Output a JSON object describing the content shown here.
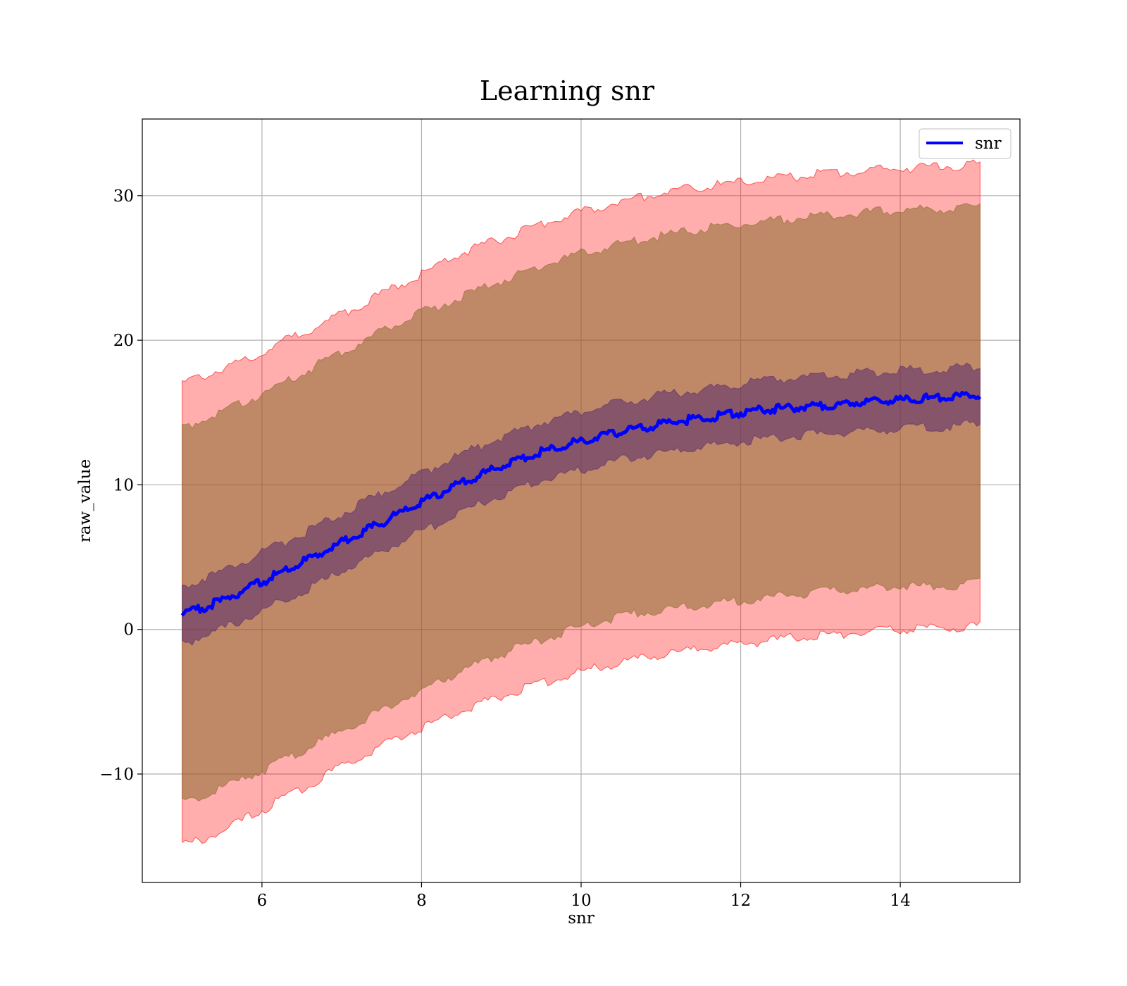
{
  "chart_data": {
    "type": "line",
    "title": "Learning snr",
    "xlabel": "snr",
    "ylabel": "raw_value",
    "xlim": [
      4.5,
      15.5
    ],
    "ylim": [
      -17.5,
      35.3
    ],
    "xticks": [
      6,
      8,
      10,
      12,
      14
    ],
    "yticks": [
      -10,
      0,
      10,
      20,
      30
    ],
    "xtick_labels": [
      "6",
      "8",
      "10",
      "12",
      "14"
    ],
    "ytick_labels": [
      "−10",
      "0",
      "10",
      "20",
      "30"
    ],
    "grid": true,
    "legend_position": "top-right",
    "series": [
      {
        "name": "snr",
        "color": "#0000ff",
        "x": [
          5,
          5.5,
          6,
          6.5,
          7,
          7.5,
          8,
          8.5,
          9,
          9.5,
          10,
          10.5,
          11,
          11.5,
          12,
          12.5,
          13,
          13.5,
          14,
          14.5,
          15
        ],
        "y": [
          1.0,
          2.0,
          3.3,
          4.6,
          6.0,
          7.4,
          8.8,
          10.1,
          11.3,
          12.3,
          13.0,
          13.7,
          14.2,
          14.6,
          15.0,
          15.3,
          15.5,
          15.7,
          15.9,
          16.0,
          16.2
        ]
      }
    ],
    "bands": [
      {
        "color": "#ff0000",
        "opacity": 0.32,
        "x": [
          5,
          5.5,
          6,
          6.5,
          7,
          7.5,
          8,
          8.5,
          9,
          9.5,
          10,
          10.5,
          11,
          11.5,
          12,
          12.5,
          13,
          13.5,
          14,
          14.5,
          15
        ],
        "lower": [
          -15.0,
          -14.0,
          -12.5,
          -11.0,
          -9.5,
          -8.0,
          -6.8,
          -5.6,
          -4.6,
          -3.7,
          -2.9,
          -2.3,
          -1.8,
          -1.3,
          -1.0,
          -0.7,
          -0.4,
          -0.2,
          0.0,
          0.1,
          0.2
        ],
        "upper": [
          17.0,
          18.0,
          19.2,
          20.5,
          21.8,
          23.2,
          24.6,
          26.0,
          27.0,
          28.0,
          28.9,
          29.6,
          30.2,
          30.6,
          30.9,
          31.2,
          31.5,
          31.7,
          31.9,
          32.0,
          32.2
        ]
      },
      {
        "color": "#8b6b2e",
        "opacity": 0.55,
        "x": [
          5,
          5.5,
          6,
          6.5,
          7,
          7.5,
          8,
          8.5,
          9,
          9.5,
          10,
          10.5,
          11,
          11.5,
          12,
          12.5,
          13,
          13.5,
          14,
          14.5,
          15
        ],
        "lower": [
          -12.0,
          -11.0,
          -9.8,
          -8.4,
          -7.0,
          -5.6,
          -4.2,
          -2.9,
          -1.7,
          -0.7,
          0.2,
          0.9,
          1.3,
          1.7,
          2.0,
          2.3,
          2.6,
          2.8,
          3.0,
          3.0,
          3.2
        ],
        "upper": [
          14.0,
          15.0,
          16.3,
          17.7,
          19.2,
          20.6,
          21.9,
          23.0,
          24.1,
          25.1,
          26.0,
          26.7,
          27.2,
          27.7,
          28.0,
          28.3,
          28.6,
          28.8,
          29.0,
          29.1,
          29.3
        ]
      },
      {
        "color": "#5a2a6e",
        "opacity": 0.55,
        "x": [
          5,
          5.5,
          6,
          6.5,
          7,
          7.5,
          8,
          8.5,
          9,
          9.5,
          10,
          10.5,
          11,
          11.5,
          12,
          12.5,
          13,
          13.5,
          14,
          14.5,
          15
        ],
        "lower": [
          -1.0,
          0.0,
          1.3,
          2.6,
          4.0,
          5.4,
          6.8,
          8.1,
          9.3,
          10.3,
          11.0,
          11.7,
          12.2,
          12.6,
          13.0,
          13.3,
          13.5,
          13.7,
          13.9,
          14.0,
          14.2
        ],
        "upper": [
          3.0,
          4.0,
          5.3,
          6.6,
          8.0,
          9.4,
          10.8,
          12.1,
          13.3,
          14.3,
          15.0,
          15.7,
          16.2,
          16.6,
          17.0,
          17.3,
          17.5,
          17.7,
          17.9,
          18.0,
          18.2
        ]
      }
    ]
  }
}
